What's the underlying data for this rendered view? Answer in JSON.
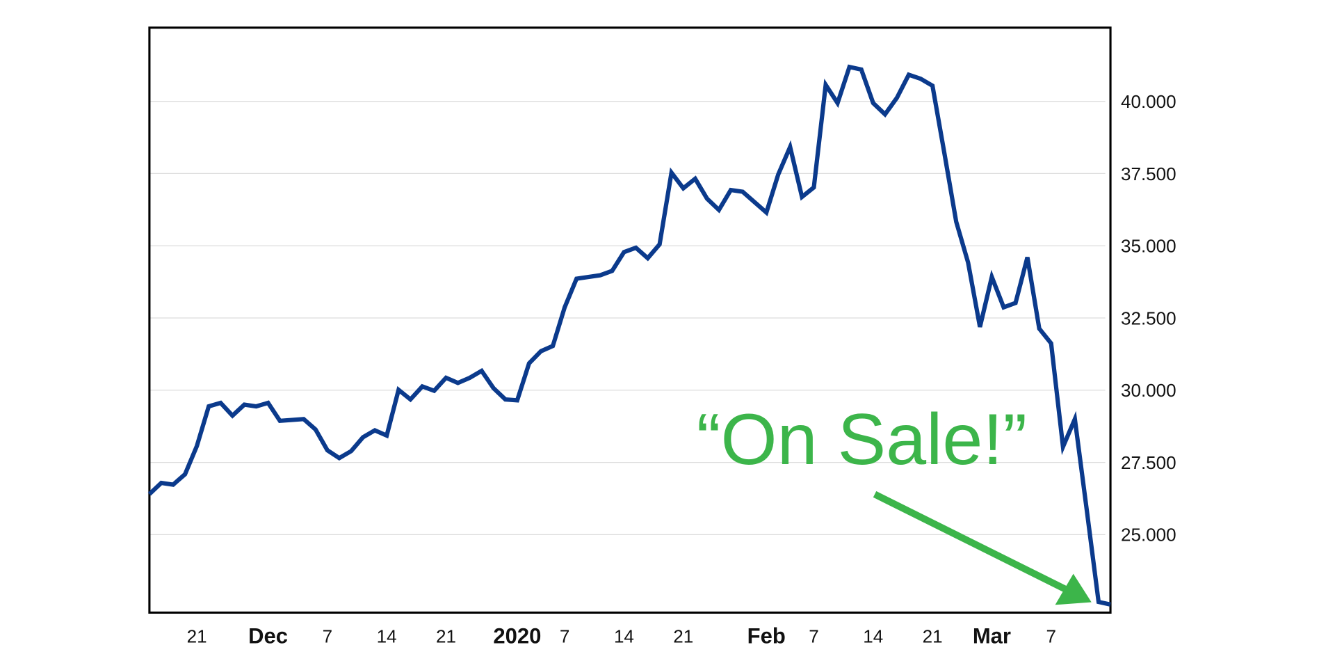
{
  "chart_data": {
    "type": "line",
    "annotation": "“On Sale!”",
    "annotation_color": "#3cb54a",
    "color": "#0b3a8c",
    "values": [
      26402,
      26790,
      26730,
      27090,
      28070,
      29440,
      29560,
      29120,
      29500,
      29440,
      29560,
      28940,
      28970,
      29000,
      28640,
      27920,
      27650,
      27890,
      28370,
      28610,
      28430,
      30010,
      29680,
      30130,
      29980,
      30430,
      30250,
      30430,
      30670,
      30070,
      29680,
      29650,
      30930,
      31350,
      31530,
      32870,
      33860,
      33920,
      33980,
      34130,
      34780,
      34930,
      34570,
      35050,
      37530,
      36990,
      37320,
      36630,
      36240,
      36930,
      36870,
      36510,
      36150,
      37470,
      38420,
      36690,
      37020,
      40570,
      39940,
      41190,
      41100,
      39940,
      39550,
      40120,
      40920,
      40780,
      40540,
      38210,
      35830,
      34420,
      32190,
      33920,
      32870,
      33020,
      34600,
      32130,
      31620,
      28040,
      29000,
      25860,
      22670,
      22580
    ],
    "xlim": [
      0,
      81
    ],
    "xticks": [
      {
        "value": 4,
        "label": "21"
      },
      {
        "value": 10,
        "label": "Dec",
        "bold": true
      },
      {
        "value": 15,
        "label": "7"
      },
      {
        "value": 20,
        "label": "14"
      },
      {
        "value": 25,
        "label": "21"
      },
      {
        "value": 31,
        "label": "2020",
        "bold": true
      },
      {
        "value": 35,
        "label": "7"
      },
      {
        "value": 40,
        "label": "14"
      },
      {
        "value": 45,
        "label": "21"
      },
      {
        "value": 52,
        "label": "Feb",
        "bold": true
      },
      {
        "value": 56,
        "label": "7"
      },
      {
        "value": 61,
        "label": "14"
      },
      {
        "value": 66,
        "label": "21"
      },
      {
        "value": 71,
        "label": "Mar",
        "bold": true
      },
      {
        "value": 76,
        "label": "7"
      }
    ],
    "ylim": [
      22300,
      42550
    ],
    "yticks": [
      {
        "value": 25000,
        "label": "25.000"
      },
      {
        "value": 27500,
        "label": "27.500"
      },
      {
        "value": 30000,
        "label": "30.000"
      },
      {
        "value": 32500,
        "label": "32.500"
      },
      {
        "value": 35000,
        "label": "35.000"
      },
      {
        "value": 37500,
        "label": "37.500"
      },
      {
        "value": 40000,
        "label": "40.000"
      }
    ],
    "grid": true
  }
}
